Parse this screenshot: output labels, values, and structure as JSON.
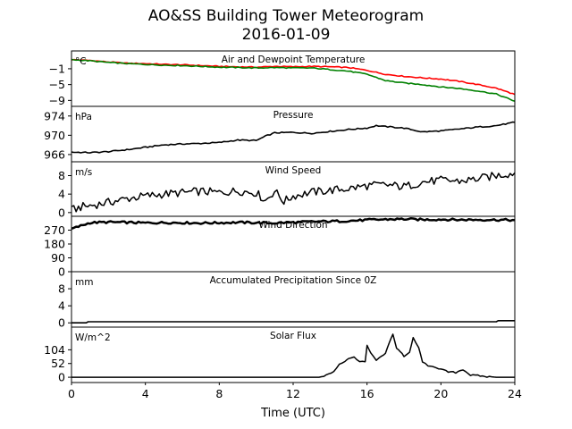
{
  "title_line1": "AO&SS Building Tower Meteorogram",
  "title_line2": "2016-01-09",
  "chart_data": {
    "type": "line",
    "x_label": "Time (UTC)",
    "x_range": [
      0,
      24
    ],
    "x_ticks": [
      0,
      4,
      8,
      12,
      16,
      20,
      24
    ],
    "panels": [
      {
        "id": "temperature",
        "title": "Air and Dewpoint Temperature",
        "unit": "°C",
        "ylim": [
          -10.5,
          3.5
        ],
        "yticks": [
          -1,
          -5,
          -9
        ],
        "series": [
          {
            "color": "#ff0000",
            "x": [
              0,
              1,
              2,
              3,
              4,
              5,
              6,
              7,
              8,
              9,
              10,
              11,
              12,
              13,
              14,
              15,
              16,
              17,
              18,
              19,
              20,
              21,
              22,
              23,
              24
            ],
            "y": [
              1.3,
              1.1,
              0.7,
              0.4,
              0.3,
              0.1,
              0.0,
              -0.2,
              -0.4,
              -0.5,
              -0.6,
              -0.4,
              -0.5,
              -0.4,
              -0.5,
              -0.7,
              -1.4,
              -2.4,
              -2.9,
              -3.3,
              -3.6,
              -4.2,
              -5.0,
              -5.9,
              -7.5
            ]
          },
          {
            "color": "#008000",
            "x": [
              0,
              1,
              2,
              3,
              4,
              5,
              6,
              7,
              8,
              9,
              10,
              11,
              12,
              13,
              14,
              15,
              16,
              17,
              18,
              19,
              20,
              21,
              22,
              23,
              24
            ],
            "y": [
              1.3,
              1.0,
              0.6,
              0.3,
              0.1,
              -0.1,
              -0.2,
              -0.4,
              -0.6,
              -0.7,
              -0.8,
              -0.7,
              -0.8,
              -0.8,
              -1.2,
              -1.6,
              -2.4,
              -4.0,
              -4.6,
              -5.0,
              -5.6,
              -6.0,
              -6.6,
              -7.4,
              -9.2
            ]
          }
        ]
      },
      {
        "id": "pressure",
        "title": "Pressure",
        "unit": "hPa",
        "ylim": [
          964.5,
          976.0
        ],
        "yticks": [
          974,
          970,
          966
        ],
        "series": [
          {
            "color": "#000000",
            "x": [
              0,
              1,
              2,
              3,
              4,
              5,
              6,
              7,
              8,
              9,
              10,
              10.5,
              11,
              12,
              13,
              14,
              15,
              16,
              16.5,
              17,
              18,
              19,
              20,
              21,
              22,
              23,
              24
            ],
            "y": [
              966.5,
              966.4,
              966.6,
              967.0,
              967.5,
              968.0,
              968.2,
              968.3,
              968.5,
              969.0,
              968.9,
              969.8,
              970.5,
              970.6,
              970.4,
              970.8,
              971.2,
              971.5,
              972.0,
              971.8,
              971.5,
              970.7,
              970.9,
              971.3,
              971.7,
              972.0,
              972.7
            ]
          }
        ]
      },
      {
        "id": "wind_speed",
        "title": "Wind Speed",
        "unit": "m/s",
        "ylim": [
          -1,
          11
        ],
        "yticks": [
          8,
          4,
          0
        ],
        "series": [
          {
            "color": "#000000",
            "x": [
              0,
              0.5,
              1,
              2,
              3,
              4,
              5,
              6,
              7,
              8,
              9,
              10,
              10.5,
              11,
              11.5,
              12,
              13,
              14,
              15,
              16,
              17,
              18,
              19,
              20,
              21,
              22,
              23,
              24
            ],
            "y": [
              0.5,
              1.2,
              1.5,
              2.2,
              3.0,
              3.6,
              4.0,
              4.3,
              4.6,
              4.3,
              4.7,
              4.3,
              2.6,
              4.7,
              2.4,
              3.6,
              4.4,
              4.8,
              5.2,
              5.8,
              6.0,
              5.6,
              6.6,
              7.0,
              6.8,
              7.3,
              8.0,
              8.6
            ]
          }
        ]
      },
      {
        "id": "wind_direction",
        "title": "Wind Direction",
        "unit": "",
        "ylim": [
          0,
          360
        ],
        "yticks": [
          270,
          180,
          90,
          0
        ],
        "series": [
          {
            "color": "#000000",
            "x": [
              0,
              0.5,
              1,
              2,
              3,
              4,
              5,
              6,
              7,
              8,
              9,
              10,
              11,
              12,
              13,
              14,
              15,
              16,
              17,
              18,
              19,
              20,
              21,
              22,
              23,
              24
            ],
            "y": [
              278,
              298,
              318,
              322,
              320,
              317,
              319,
              318,
              316,
              318,
              320,
              318,
              316,
              320,
              325,
              327,
              330,
              336,
              340,
              342,
              338,
              340,
              337,
              338,
              337,
              335
            ]
          }
        ]
      },
      {
        "id": "precipitation",
        "title": "Accumulated Precipitation Since 0Z",
        "unit": "mm",
        "ylim": [
          -1,
          12
        ],
        "yticks": [
          8,
          4,
          0
        ],
        "series": [
          {
            "color": "#000000",
            "x": [
              0,
              0.8,
              0.9,
              23.0,
              23.1,
              24
            ],
            "y": [
              0.0,
              0.0,
              0.25,
              0.25,
              0.5,
              0.5
            ]
          }
        ]
      },
      {
        "id": "solar",
        "title": "Solar Flux",
        "unit": "W/m^2",
        "ylim": [
          -20,
          190
        ],
        "yticks": [
          104,
          52,
          0
        ],
        "series": [
          {
            "color": "#000000",
            "x": [
              0,
              13.4,
              13.8,
              14.2,
              14.5,
              14.8,
              15.0,
              15.3,
              15.6,
              15.9,
              16.0,
              16.2,
              16.5,
              16.8,
              17.0,
              17.2,
              17.4,
              17.6,
              17.8,
              18.0,
              18.3,
              18.5,
              18.8,
              19.0,
              19.3,
              19.6,
              20.0,
              20.4,
              20.8,
              21.2,
              21.6,
              22.0,
              22.5,
              23.0,
              24.0
            ],
            "y": [
              0,
              0,
              8,
              22,
              50,
              62,
              72,
              75,
              62,
              58,
              118,
              95,
              62,
              80,
              92,
              128,
              165,
              110,
              98,
              80,
              92,
              150,
              110,
              60,
              40,
              42,
              30,
              20,
              18,
              30,
              8,
              6,
              2,
              0,
              0
            ]
          }
        ]
      }
    ]
  }
}
